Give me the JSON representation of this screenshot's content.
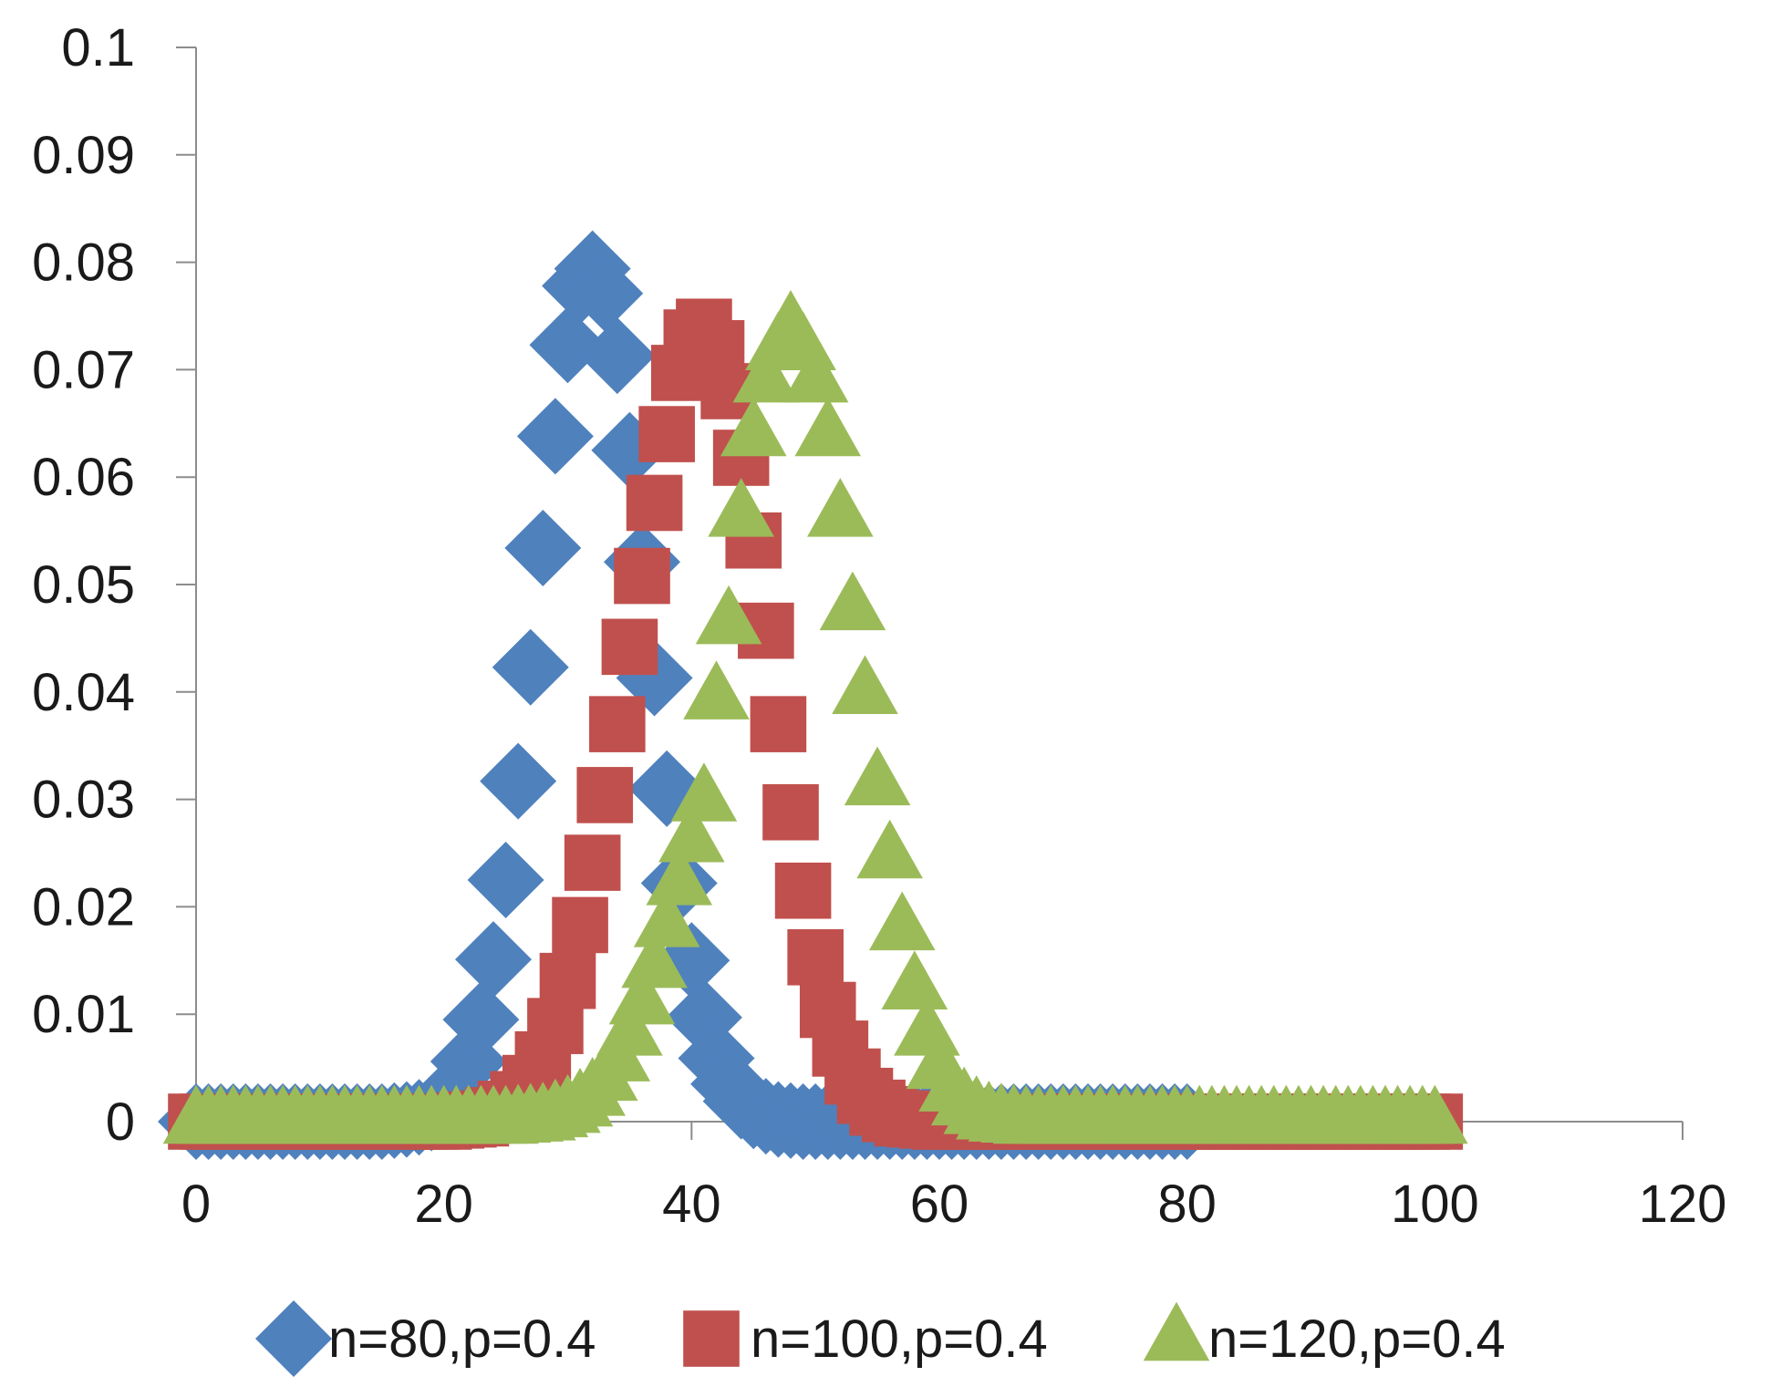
{
  "chart_data": {
    "type": "scatter",
    "title": "",
    "xlabel": "",
    "ylabel": "",
    "xlim": [
      0,
      120
    ],
    "ylim": [
      0,
      0.1
    ],
    "x_ticks": [
      0,
      20,
      40,
      60,
      80,
      100,
      120
    ],
    "y_ticks": [
      0,
      0.01,
      0.02,
      0.03,
      0.04,
      0.05,
      0.06,
      0.07,
      0.08,
      0.09,
      0.1
    ],
    "x_tick_labels": [
      "0",
      "20",
      "40",
      "60",
      "80",
      "100",
      "120"
    ],
    "y_tick_labels": [
      "0",
      "0.01",
      "0.02",
      "0.03",
      "0.04",
      "0.05",
      "0.06",
      "0.07",
      "0.08",
      "0.09",
      "0.1"
    ],
    "grid": false,
    "legend_position": "bottom",
    "series": [
      {
        "name": "n=80,p=0.4",
        "marker": "diamond",
        "color": "#4F81BD",
        "x": [
          0,
          1,
          2,
          3,
          4,
          5,
          6,
          7,
          8,
          9,
          10,
          11,
          12,
          13,
          14,
          15,
          16,
          17,
          18,
          19,
          20,
          21,
          22,
          23,
          24,
          25,
          26,
          27,
          28,
          29,
          30,
          31,
          32,
          33,
          34,
          35,
          36,
          37,
          38,
          39,
          40,
          41,
          42,
          43,
          44,
          45,
          46,
          47,
          48,
          49,
          50,
          51,
          52,
          53,
          54,
          55,
          56,
          57,
          58,
          59,
          60,
          61,
          62,
          63,
          64,
          65,
          66,
          67,
          68,
          69,
          70,
          71,
          72,
          73,
          74,
          75,
          76,
          77,
          78,
          79,
          80
        ],
        "y": [
          0,
          0,
          0,
          0,
          0,
          0,
          0,
          0,
          0,
          0,
          0,
          0,
          0,
          0,
          0,
          0,
          0.0001,
          0.0002,
          0.0004,
          0.0008,
          0.0016,
          0.0031,
          0.0056,
          0.0095,
          0.0151,
          0.0225,
          0.0317,
          0.0423,
          0.0534,
          0.0638,
          0.0723,
          0.0778,
          0.0794,
          0.0771,
          0.0713,
          0.0625,
          0.0521,
          0.0413,
          0.031,
          0.0222,
          0.015,
          0.0097,
          0.0059,
          0.0035,
          0.0019,
          0.001,
          0.0005,
          0.0002,
          0.0001,
          0,
          0,
          0,
          0,
          0,
          0,
          0,
          0,
          0,
          0,
          0,
          0,
          0,
          0,
          0,
          0,
          0,
          0,
          0,
          0,
          0,
          0,
          0,
          0,
          0,
          0,
          0,
          0,
          0,
          0,
          0,
          0
        ]
      },
      {
        "name": "n=100,p=0.4",
        "marker": "square",
        "color": "#C0504D",
        "x": [
          0,
          1,
          2,
          3,
          4,
          5,
          6,
          7,
          8,
          9,
          10,
          11,
          12,
          13,
          14,
          15,
          16,
          17,
          18,
          19,
          20,
          21,
          22,
          23,
          24,
          25,
          26,
          27,
          28,
          29,
          30,
          31,
          32,
          33,
          34,
          35,
          36,
          37,
          38,
          39,
          40,
          41,
          42,
          43,
          44,
          45,
          46,
          47,
          48,
          49,
          50,
          51,
          52,
          53,
          54,
          55,
          56,
          57,
          58,
          59,
          60,
          61,
          62,
          63,
          64,
          65,
          66,
          67,
          68,
          69,
          70,
          71,
          72,
          73,
          74,
          75,
          76,
          77,
          78,
          79,
          80,
          81,
          82,
          83,
          84,
          85,
          86,
          87,
          88,
          89,
          90,
          91,
          92,
          93,
          94,
          95,
          96,
          97,
          98,
          99,
          100
        ],
        "y": [
          0,
          0,
          0,
          0,
          0,
          0,
          0,
          0,
          0,
          0,
          0,
          0,
          0,
          0,
          0,
          0,
          0,
          0,
          0,
          0,
          0,
          0.0001,
          0.0002,
          0.0003,
          0.0006,
          0.0012,
          0.0021,
          0.0036,
          0.0058,
          0.0089,
          0.0131,
          0.0183,
          0.0241,
          0.0304,
          0.037,
          0.0442,
          0.0508,
          0.0576,
          0.064,
          0.0697,
          0.073,
          0.074,
          0.072,
          0.068,
          0.0618,
          0.0541,
          0.0457,
          0.037,
          0.0288,
          0.0215,
          0.0153,
          0.0104,
          0.0068,
          0.0042,
          0.0024,
          0.0013,
          0.0007,
          0.0003,
          0.0002,
          0.0001,
          0,
          0,
          0,
          0,
          0,
          0,
          0,
          0,
          0,
          0,
          0,
          0,
          0,
          0,
          0,
          0,
          0,
          0,
          0,
          0,
          0,
          0,
          0,
          0,
          0,
          0,
          0,
          0,
          0,
          0,
          0,
          0,
          0,
          0,
          0,
          0,
          0,
          0,
          0,
          0,
          0
        ]
      },
      {
        "name": "n=120,p=0.4",
        "marker": "triangle",
        "color": "#9BBB59",
        "x": [
          0,
          1,
          2,
          3,
          4,
          5,
          6,
          7,
          8,
          9,
          10,
          11,
          12,
          13,
          14,
          15,
          16,
          17,
          18,
          19,
          20,
          21,
          22,
          23,
          24,
          25,
          26,
          27,
          28,
          29,
          30,
          31,
          32,
          33,
          34,
          35,
          36,
          37,
          38,
          39,
          40,
          41,
          42,
          43,
          44,
          45,
          46,
          47,
          48,
          49,
          50,
          51,
          52,
          53,
          54,
          55,
          56,
          57,
          58,
          59,
          60,
          61,
          62,
          63,
          64,
          65,
          66,
          67,
          68,
          69,
          70,
          71,
          72,
          73,
          74,
          75,
          76,
          77,
          78,
          79,
          80,
          81,
          82,
          83,
          84,
          85,
          86,
          87,
          88,
          89,
          90,
          91,
          92,
          93,
          94,
          95,
          96,
          97,
          98,
          99,
          100
        ],
        "y": [
          0,
          0,
          0,
          0,
          0,
          0,
          0,
          0,
          0,
          0,
          0,
          0,
          0,
          0,
          0,
          0,
          0,
          0,
          0,
          0,
          0,
          0,
          0,
          0,
          0,
          0,
          0.0001,
          0.0002,
          0.0003,
          0.0006,
          0.001,
          0.0016,
          0.0026,
          0.004,
          0.0058,
          0.0082,
          0.0111,
          0.0145,
          0.0183,
          0.0222,
          0.0262,
          0.03,
          0.0395,
          0.0465,
          0.0565,
          0.064,
          0.069,
          0.072,
          0.074,
          0.072,
          0.069,
          0.064,
          0.0565,
          0.0478,
          0.04,
          0.0315,
          0.0247,
          0.018,
          0.0125,
          0.0082,
          0.0051,
          0.003,
          0.0017,
          0.0009,
          0.0004,
          0.0002,
          0.0001,
          0,
          0,
          0,
          0,
          0,
          0,
          0,
          0,
          0,
          0,
          0,
          0,
          0,
          0,
          0,
          0,
          0,
          0,
          0,
          0,
          0,
          0,
          0,
          0,
          0,
          0,
          0,
          0,
          0,
          0,
          0,
          0,
          0,
          0
        ]
      }
    ]
  }
}
